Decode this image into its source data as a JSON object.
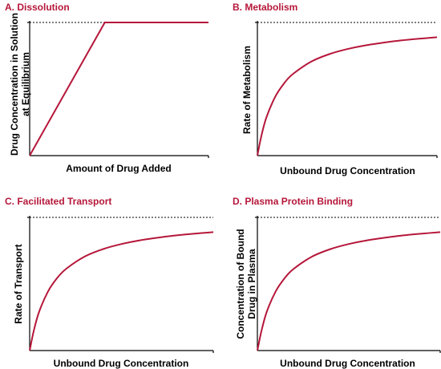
{
  "colors": {
    "curve": "#b5173a",
    "title": "#b5173a",
    "axis": "#000000",
    "asymptote": "#000000"
  },
  "chart_data": [
    {
      "type": "line",
      "title": "A.  Dissolution",
      "xlabel": "Amount of Drug Added",
      "ylabel": "Drug Concentration in Solution at Equilibrium",
      "ylabel_lines": [
        "Drug Concentration in Solution",
        "at Equilibrium"
      ],
      "xlim": [
        0,
        1
      ],
      "ylim": [
        0,
        1
      ],
      "grid": false,
      "asymptote": 1.0,
      "series": [
        {
          "x": [
            0,
            0.42,
            1.0
          ],
          "y": [
            0,
            1.0,
            1.0
          ]
        }
      ]
    },
    {
      "type": "line",
      "title": "B.  Metabolism",
      "xlabel": "Unbound Drug Concentration",
      "ylabel": "Rate of Metabolism",
      "ylabel_lines": [
        "Rate of Metabolism"
      ],
      "xlim": [
        0,
        1
      ],
      "ylim": [
        0,
        1
      ],
      "grid": false,
      "asymptote": 1.0,
      "series": [
        {
          "x": [
            0,
            0.02,
            0.05,
            0.1,
            0.15,
            0.2,
            0.3,
            0.4,
            0.5,
            0.6,
            0.7,
            0.8,
            0.9,
            1.0
          ],
          "y": [
            0,
            0.135,
            0.286,
            0.444,
            0.545,
            0.615,
            0.706,
            0.762,
            0.8,
            0.828,
            0.848,
            0.865,
            0.878,
            0.889
          ]
        }
      ]
    },
    {
      "type": "line",
      "title": "C.  Facilitated Transport",
      "xlabel": "Unbound Drug Concentration",
      "ylabel": "Rate of Transport",
      "ylabel_lines": [
        "Rate of Transport"
      ],
      "xlim": [
        0,
        1
      ],
      "ylim": [
        0,
        1
      ],
      "grid": false,
      "asymptote": 1.0,
      "series": [
        {
          "x": [
            0,
            0.02,
            0.05,
            0.1,
            0.15,
            0.2,
            0.3,
            0.4,
            0.5,
            0.6,
            0.7,
            0.8,
            0.9,
            1.0
          ],
          "y": [
            0,
            0.135,
            0.286,
            0.444,
            0.545,
            0.615,
            0.706,
            0.762,
            0.8,
            0.828,
            0.848,
            0.865,
            0.878,
            0.889
          ]
        }
      ]
    },
    {
      "type": "line",
      "title": "D.  Plasma Protein Binding",
      "xlabel": "Unbound Drug Concentration",
      "ylabel": "Concentration of Bound Drug in Plasma",
      "ylabel_lines": [
        "Concentration of Bound",
        "Drug in Plasma"
      ],
      "xlim": [
        0,
        1
      ],
      "ylim": [
        0,
        1
      ],
      "grid": false,
      "asymptote": 1.0,
      "series": [
        {
          "x": [
            0,
            0.02,
            0.05,
            0.1,
            0.15,
            0.2,
            0.3,
            0.4,
            0.5,
            0.6,
            0.7,
            0.8,
            0.9,
            1.0
          ],
          "y": [
            0,
            0.135,
            0.286,
            0.444,
            0.545,
            0.615,
            0.706,
            0.762,
            0.8,
            0.828,
            0.848,
            0.865,
            0.878,
            0.889
          ]
        }
      ]
    }
  ]
}
